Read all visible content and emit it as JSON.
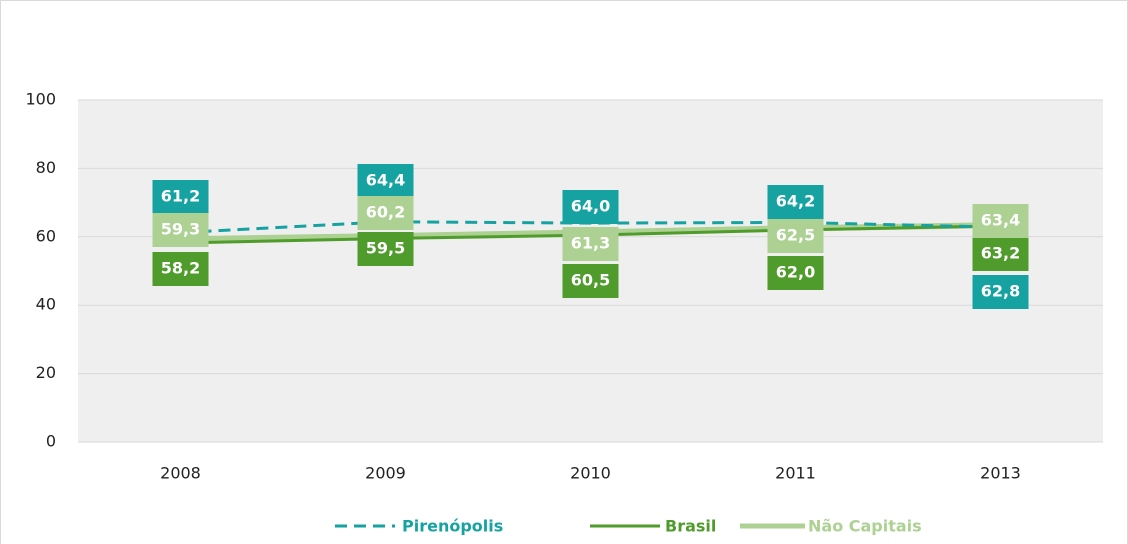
{
  "chart_data": {
    "type": "line",
    "categories": [
      "2008",
      "2009",
      "2010",
      "2011",
      "2013"
    ],
    "series": [
      {
        "name": "Pirenópolis",
        "color": "#17a2a2",
        "dashed": true,
        "values": [
          61.2,
          64.4,
          64.0,
          64.2,
          62.8
        ],
        "value_labels": [
          "61,2",
          "64,4",
          "64,0",
          "64,2",
          "62,8"
        ]
      },
      {
        "name": "Brasil",
        "color": "#4f9b2b",
        "values": [
          58.2,
          59.5,
          60.5,
          62.0,
          63.2
        ],
        "value_labels": [
          "58,2",
          "59,5",
          "60,5",
          "62,0",
          "63,2"
        ]
      },
      {
        "name": "Não Capitais",
        "color": "#acd193",
        "values": [
          59.3,
          60.2,
          61.3,
          62.5,
          63.4
        ],
        "value_labels": [
          "59,3",
          "60,2",
          "61,3",
          "62,5",
          "63,4"
        ]
      }
    ],
    "ylim": [
      0,
      100
    ],
    "yticks": [
      0,
      20,
      40,
      60,
      80,
      100
    ],
    "grid": true,
    "legend": "bottom"
  }
}
